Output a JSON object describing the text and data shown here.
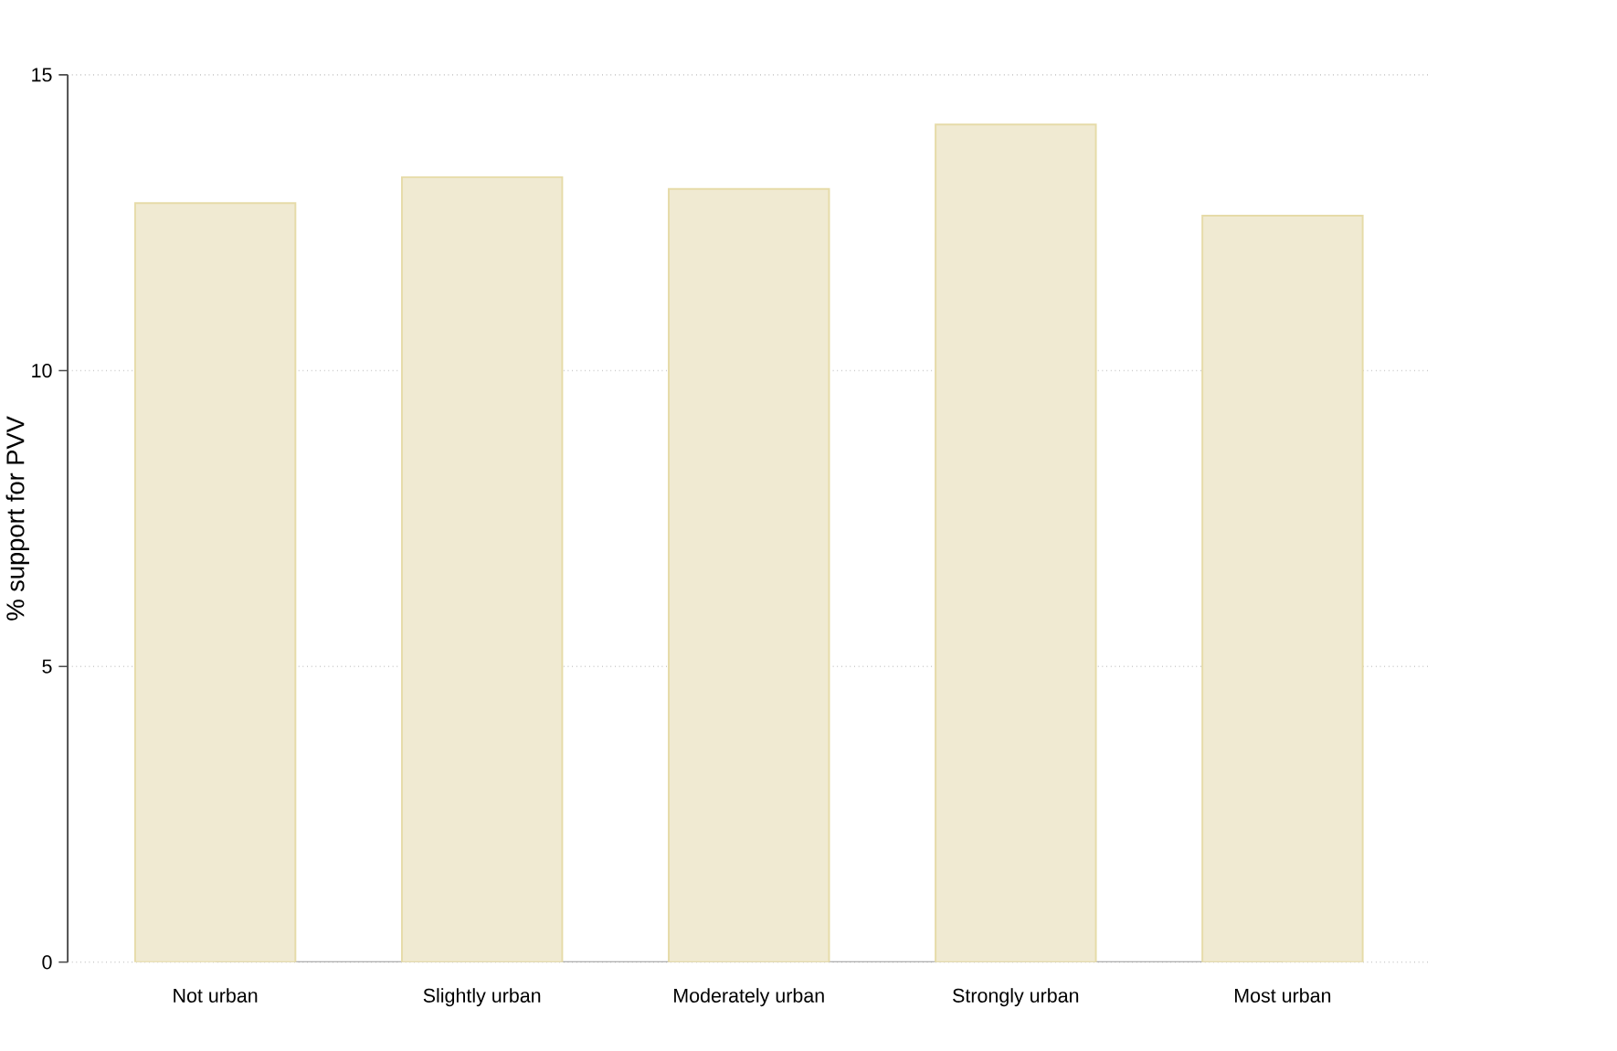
{
  "chart_data": {
    "type": "bar",
    "ylabel": "% support for PVV",
    "categories": [
      "Not urban",
      "Slightly urban",
      "Moderately urban",
      "Strongly urban",
      "Most urban"
    ],
    "values": [
      12.83,
      13.27,
      13.07,
      14.16,
      12.62
    ],
    "color": "#f0ead2",
    "ylim": [
      0,
      15
    ],
    "yticks": [
      0,
      5,
      10,
      15
    ],
    "grid": "y"
  }
}
